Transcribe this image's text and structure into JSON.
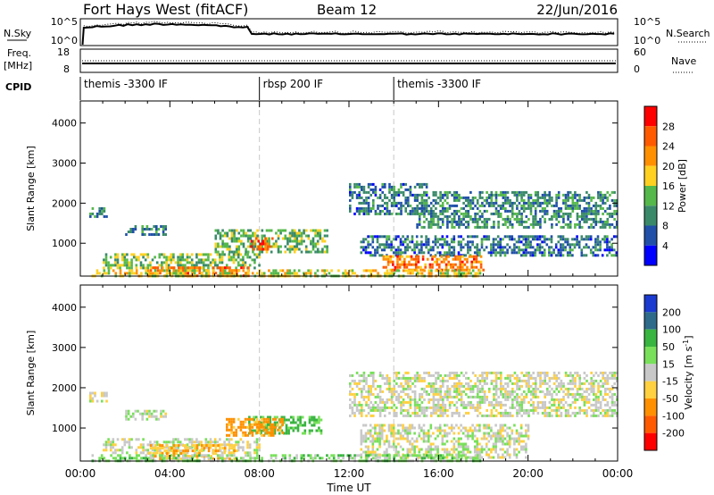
{
  "header": {
    "title": "Fort Hays West (fitACF)",
    "beam": "Beam 12",
    "date": "22/Jun/2016"
  },
  "top_panel": {
    "left_label": "N.Sky",
    "right_label": "N.Search",
    "left_ticks": [
      "10^5",
      "10^0"
    ],
    "right_ticks": [
      "10^5",
      "10^0"
    ]
  },
  "freq_panel": {
    "label_line1": "Freq.",
    "label_line2": "[MHz]",
    "left_ticks": [
      "18",
      "8"
    ],
    "right_label": "Nave",
    "right_ticks": [
      "60",
      "0"
    ]
  },
  "cpid_panel": {
    "label": "CPID",
    "modes": [
      {
        "name": "themis -3300 IF",
        "start_hour": 0
      },
      {
        "name": "rbsp 200 IF",
        "start_hour": 8
      },
      {
        "name": "themis -3300 IF",
        "start_hour": 14
      }
    ]
  },
  "colors": {
    "power": [
      "#0000ff",
      "#2050a8",
      "#3a8a6a",
      "#55b84a",
      "#ffd020",
      "#ff9000",
      "#ff5a00",
      "#ff0000"
    ],
    "velocity": [
      "#ff0000",
      "#ff5a00",
      "#ff9000",
      "#ffd040",
      "#c8c8c8",
      "#78e05a",
      "#38b440",
      "#2e6a8a",
      "#1a3ad0"
    ],
    "dash": "#c8c8c8"
  },
  "chart_data": [
    {
      "type": "heatmap",
      "name": "Power",
      "xlabel": "",
      "ylabel": "Slant Range [km]",
      "x_range_hours": [
        0,
        24
      ],
      "ylim": [
        180,
        4550
      ],
      "yticks": [
        "1000",
        "2000",
        "3000",
        "4000"
      ],
      "colorbar": {
        "label": "Power [dB]",
        "range": [
          0,
          32
        ],
        "ticks": [
          "4",
          "8",
          "12",
          "16",
          "20",
          "24",
          "28"
        ]
      },
      "echo_regions": [
        {
          "t0": 0.4,
          "t1": 1.2,
          "range0": 1650,
          "range1": 1900,
          "value": 10
        },
        {
          "t0": 2.0,
          "t1": 3.8,
          "range0": 1200,
          "range1": 1450,
          "value": 10
        },
        {
          "t0": 1.0,
          "t1": 8.0,
          "range0": 400,
          "range1": 750,
          "value": 14
        },
        {
          "t0": 6.0,
          "t1": 11.0,
          "range0": 800,
          "range1": 1350,
          "value": 13
        },
        {
          "t0": 7.6,
          "t1": 8.6,
          "range0": 850,
          "range1": 1150,
          "value": 28
        },
        {
          "t0": 3.0,
          "t1": 7.5,
          "range0": 200,
          "range1": 420,
          "value": 24
        },
        {
          "t0": 12.0,
          "t1": 15.5,
          "range0": 1700,
          "range1": 2500,
          "value": 8
        },
        {
          "t0": 15.0,
          "t1": 24.0,
          "range0": 1400,
          "range1": 2300,
          "value": 10
        },
        {
          "t0": 12.5,
          "t1": 24.0,
          "range0": 700,
          "range1": 1200,
          "value": 8
        },
        {
          "t0": 13.5,
          "t1": 18.0,
          "range0": 300,
          "range1": 700,
          "value": 24
        },
        {
          "t0": 0.5,
          "t1": 18.0,
          "range0": 180,
          "range1": 350,
          "value": 18
        }
      ]
    },
    {
      "type": "heatmap",
      "name": "Velocity",
      "xlabel": "Time UT",
      "ylabel": "Slant Range [km]",
      "x_range_hours": [
        0,
        24
      ],
      "xticks": [
        "00:00",
        "04:00",
        "08:00",
        "12:00",
        "16:00",
        "20:00",
        "00:00"
      ],
      "ylim": [
        180,
        4550
      ],
      "yticks": [
        "1000",
        "2000",
        "3000",
        "4000"
      ],
      "colorbar": {
        "label": "Velocity [m s",
        "label_sup": "-1",
        "label_close": "]",
        "ticks": [
          "200",
          "100",
          "50",
          "15",
          "-15",
          "-50",
          "-100",
          "-200"
        ]
      },
      "echo_regions": [
        {
          "t0": 0.4,
          "t1": 1.2,
          "range0": 1650,
          "range1": 1900,
          "value": 0
        },
        {
          "t0": 2.0,
          "t1": 3.8,
          "range0": 1200,
          "range1": 1450,
          "value": 0
        },
        {
          "t0": 1.0,
          "t1": 8.0,
          "range0": 400,
          "range1": 750,
          "value": 0
        },
        {
          "t0": 7.5,
          "t1": 10.8,
          "range0": 900,
          "range1": 1300,
          "value": 60
        },
        {
          "t0": 6.5,
          "t1": 9.0,
          "range0": 800,
          "range1": 1250,
          "value": -70
        },
        {
          "t0": 3.0,
          "t1": 7.0,
          "range0": 250,
          "range1": 600,
          "value": -40
        },
        {
          "t0": 12.0,
          "t1": 24.0,
          "range0": 1300,
          "range1": 2400,
          "value": 0
        },
        {
          "t0": 12.5,
          "t1": 20.0,
          "range0": 300,
          "range1": 1100,
          "value": 0
        },
        {
          "t0": 0.5,
          "t1": 18.0,
          "range0": 180,
          "range1": 350,
          "value": 30
        }
      ]
    }
  ]
}
